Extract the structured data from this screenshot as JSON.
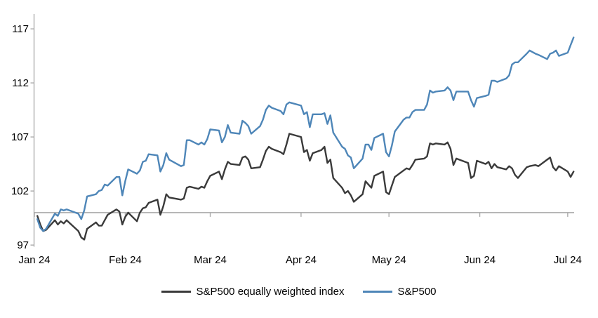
{
  "chart_data": {
    "type": "line",
    "title": "",
    "xlabel": "",
    "ylabel": "",
    "y_ticks": [
      97,
      102,
      107,
      112,
      117
    ],
    "ylim": [
      96.5,
      118.3
    ],
    "baseline_value": 100,
    "x_month_ticks": [
      "2024-01-01",
      "2024-02-01",
      "2024-03-01",
      "2024-04-01",
      "2024-05-01",
      "2024-06-01",
      "2024-07-01"
    ],
    "x_tick_labels": [
      "Jan 24",
      "Feb 24",
      "Mar 24",
      "Apr 24",
      "May 24",
      "Jun 24",
      "Jul 24"
    ],
    "legend_position": "bottom",
    "grid": false,
    "axis_color": "#a6a6a6",
    "baseline_color": "#a6a6a6",
    "label_color": "#000000",
    "dates": [
      "2024-01-02",
      "2024-01-03",
      "2024-01-04",
      "2024-01-05",
      "2024-01-08",
      "2024-01-09",
      "2024-01-10",
      "2024-01-11",
      "2024-01-12",
      "2024-01-16",
      "2024-01-17",
      "2024-01-18",
      "2024-01-19",
      "2024-01-22",
      "2024-01-23",
      "2024-01-24",
      "2024-01-25",
      "2024-01-26",
      "2024-01-29",
      "2024-01-30",
      "2024-01-31",
      "2024-02-01",
      "2024-02-02",
      "2024-02-05",
      "2024-02-06",
      "2024-02-07",
      "2024-02-08",
      "2024-02-09",
      "2024-02-12",
      "2024-02-13",
      "2024-02-14",
      "2024-02-15",
      "2024-02-16",
      "2024-02-20",
      "2024-02-21",
      "2024-02-22",
      "2024-02-23",
      "2024-02-26",
      "2024-02-27",
      "2024-02-28",
      "2024-02-29",
      "2024-03-01",
      "2024-03-04",
      "2024-03-05",
      "2024-03-06",
      "2024-03-07",
      "2024-03-08",
      "2024-03-11",
      "2024-03-12",
      "2024-03-13",
      "2024-03-14",
      "2024-03-15",
      "2024-03-18",
      "2024-03-19",
      "2024-03-20",
      "2024-03-21",
      "2024-03-22",
      "2024-03-25",
      "2024-03-26",
      "2024-03-27",
      "2024-03-28",
      "2024-04-01",
      "2024-04-02",
      "2024-04-03",
      "2024-04-04",
      "2024-04-05",
      "2024-04-08",
      "2024-04-09",
      "2024-04-10",
      "2024-04-11",
      "2024-04-12",
      "2024-04-15",
      "2024-04-16",
      "2024-04-17",
      "2024-04-18",
      "2024-04-19",
      "2024-04-22",
      "2024-04-23",
      "2024-04-24",
      "2024-04-25",
      "2024-04-26",
      "2024-04-29",
      "2024-04-30",
      "2024-05-01",
      "2024-05-02",
      "2024-05-03",
      "2024-05-06",
      "2024-05-07",
      "2024-05-08",
      "2024-05-09",
      "2024-05-10",
      "2024-05-13",
      "2024-05-14",
      "2024-05-15",
      "2024-05-16",
      "2024-05-17",
      "2024-05-20",
      "2024-05-21",
      "2024-05-22",
      "2024-05-23",
      "2024-05-24",
      "2024-05-28",
      "2024-05-29",
      "2024-05-30",
      "2024-05-31",
      "2024-06-03",
      "2024-06-04",
      "2024-06-05",
      "2024-06-06",
      "2024-06-07",
      "2024-06-10",
      "2024-06-11",
      "2024-06-12",
      "2024-06-13",
      "2024-06-14",
      "2024-06-17",
      "2024-06-18",
      "2024-06-20",
      "2024-06-21",
      "2024-06-24",
      "2024-06-25",
      "2024-06-26",
      "2024-06-27",
      "2024-06-28",
      "2024-07-01",
      "2024-07-02",
      "2024-07-03"
    ],
    "series": [
      {
        "name": "S&P500 equally weighted index",
        "color": "#3a3a3a",
        "values": [
          99.7,
          98.9,
          98.3,
          98.4,
          99.3,
          98.9,
          99.2,
          99.0,
          99.3,
          98.3,
          97.7,
          97.5,
          98.5,
          99.1,
          98.8,
          98.8,
          99.3,
          99.8,
          100.3,
          100.1,
          98.9,
          99.6,
          100.0,
          99.2,
          100.0,
          100.4,
          100.5,
          100.9,
          101.2,
          99.8,
          100.6,
          101.7,
          101.4,
          101.2,
          101.3,
          102.3,
          102.4,
          102.2,
          102.4,
          102.3,
          102.9,
          103.4,
          103.8,
          103.1,
          104.0,
          104.7,
          104.5,
          104.4,
          105.1,
          105.2,
          104.9,
          104.1,
          104.2,
          104.9,
          105.7,
          106.1,
          105.9,
          105.6,
          105.4,
          106.3,
          107.3,
          107.0,
          105.6,
          105.8,
          104.8,
          105.5,
          105.8,
          106.1,
          104.6,
          104.9,
          103.2,
          102.3,
          101.8,
          102.0,
          101.6,
          101.0,
          101.7,
          102.9,
          102.6,
          102.3,
          103.4,
          103.8,
          101.9,
          101.7,
          102.5,
          103.3,
          103.9,
          104.1,
          104.0,
          104.4,
          104.9,
          105.0,
          105.2,
          106.4,
          106.3,
          106.4,
          106.3,
          106.5,
          105.9,
          104.4,
          105.0,
          104.6,
          103.2,
          103.4,
          104.8,
          104.5,
          104.7,
          104.1,
          104.5,
          104.2,
          104.0,
          104.3,
          104.1,
          103.5,
          103.2,
          104.2,
          104.3,
          104.4,
          104.3,
          104.9,
          105.1,
          104.2,
          103.9,
          104.3,
          103.8,
          103.3,
          103.8
        ]
      },
      {
        "name": "S&P500",
        "color": "#4e86b8",
        "values": [
          99.4,
          98.6,
          98.3,
          98.5,
          99.9,
          99.7,
          100.3,
          100.2,
          100.3,
          99.9,
          99.4,
          100.2,
          101.5,
          101.7,
          102.0,
          102.1,
          102.6,
          102.5,
          103.3,
          103.3,
          101.6,
          102.9,
          104.0,
          103.6,
          103.9,
          104.7,
          104.8,
          105.4,
          105.3,
          103.8,
          104.4,
          105.5,
          104.9,
          104.3,
          104.4,
          106.7,
          106.7,
          106.3,
          106.5,
          106.3,
          106.8,
          107.7,
          107.6,
          106.5,
          107.0,
          108.1,
          107.4,
          107.3,
          108.5,
          108.3,
          108.0,
          107.3,
          108.0,
          108.6,
          109.5,
          109.9,
          109.7,
          109.4,
          109.1,
          110.0,
          110.2,
          109.9,
          109.1,
          109.3,
          107.9,
          109.1,
          109.1,
          109.2,
          108.2,
          109.0,
          107.4,
          106.1,
          105.9,
          105.3,
          105.1,
          104.1,
          105.0,
          106.3,
          106.3,
          105.8,
          106.9,
          107.3,
          105.6,
          105.2,
          106.2,
          107.5,
          108.6,
          108.8,
          108.8,
          109.3,
          109.5,
          109.5,
          110.0,
          111.3,
          111.1,
          111.2,
          111.3,
          111.6,
          111.3,
          110.4,
          111.2,
          111.2,
          110.4,
          109.8,
          110.6,
          110.8,
          110.9,
          112.2,
          112.2,
          112.1,
          112.4,
          112.7,
          113.7,
          113.9,
          113.9,
          114.7,
          115.0,
          114.7,
          114.6,
          114.2,
          114.7,
          114.8,
          115.0,
          114.5,
          114.8,
          115.5,
          116.2
        ]
      }
    ]
  }
}
